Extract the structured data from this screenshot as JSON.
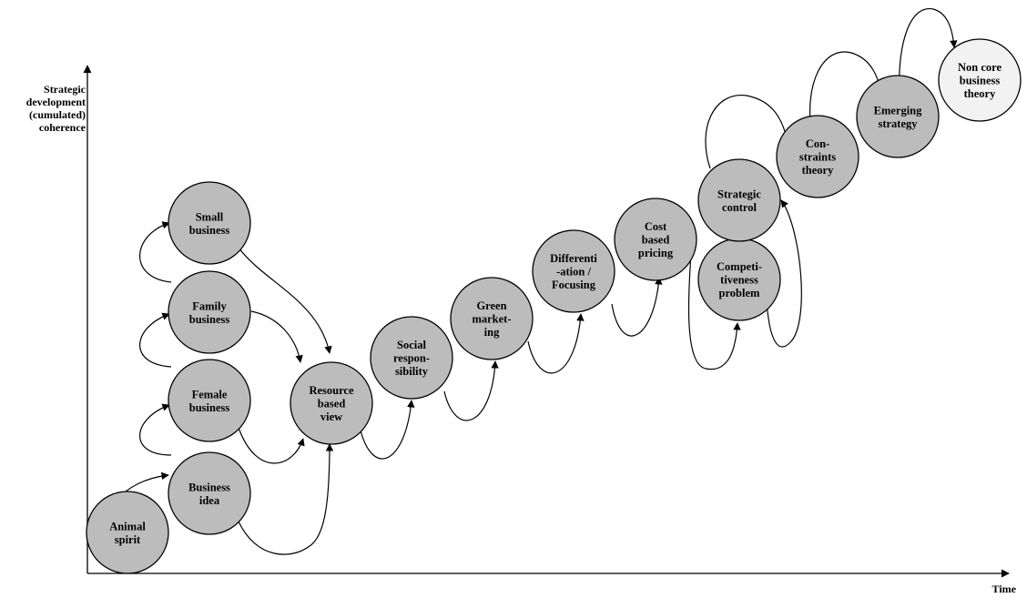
{
  "axes": {
    "y_label": "Strategic\ndevelopment\n(cumulated)\ncoherence",
    "x_label": "Time"
  },
  "colors": {
    "node_fill": "#bcbcbc",
    "final_node_fill": "#f2f2f2",
    "stroke": "#000000"
  },
  "nodes": [
    {
      "id": "animal-spirit",
      "lines": [
        "Animal",
        "spirit"
      ]
    },
    {
      "id": "business-idea",
      "lines": [
        "Business",
        "idea"
      ]
    },
    {
      "id": "female-business",
      "lines": [
        "Female",
        "business"
      ]
    },
    {
      "id": "family-business",
      "lines": [
        "Family",
        "business"
      ]
    },
    {
      "id": "small-business",
      "lines": [
        "Small",
        "business"
      ]
    },
    {
      "id": "resource-based-view",
      "lines": [
        "Resource",
        "based",
        "view"
      ]
    },
    {
      "id": "social-responsibility",
      "lines": [
        "Social",
        "respon-",
        "sibility"
      ]
    },
    {
      "id": "green-marketing",
      "lines": [
        "Green",
        "market-",
        "ing"
      ]
    },
    {
      "id": "differentiation-focusing",
      "lines": [
        "Differenti",
        "-ation /",
        "Focusing"
      ]
    },
    {
      "id": "cost-based-pricing",
      "lines": [
        "Cost",
        "based",
        "pricing"
      ]
    },
    {
      "id": "competitiveness-problem",
      "lines": [
        "Competi-",
        "tiveness",
        "problem"
      ]
    },
    {
      "id": "strategic-control",
      "lines": [
        "Strategic",
        "control"
      ]
    },
    {
      "id": "constraints-theory",
      "lines": [
        "Con-",
        "straints",
        "theory"
      ]
    },
    {
      "id": "emerging-strategy",
      "lines": [
        "Emerging",
        "strategy"
      ]
    },
    {
      "id": "non-core-business-theory",
      "lines": [
        "Non core",
        "business",
        "theory"
      ]
    }
  ]
}
